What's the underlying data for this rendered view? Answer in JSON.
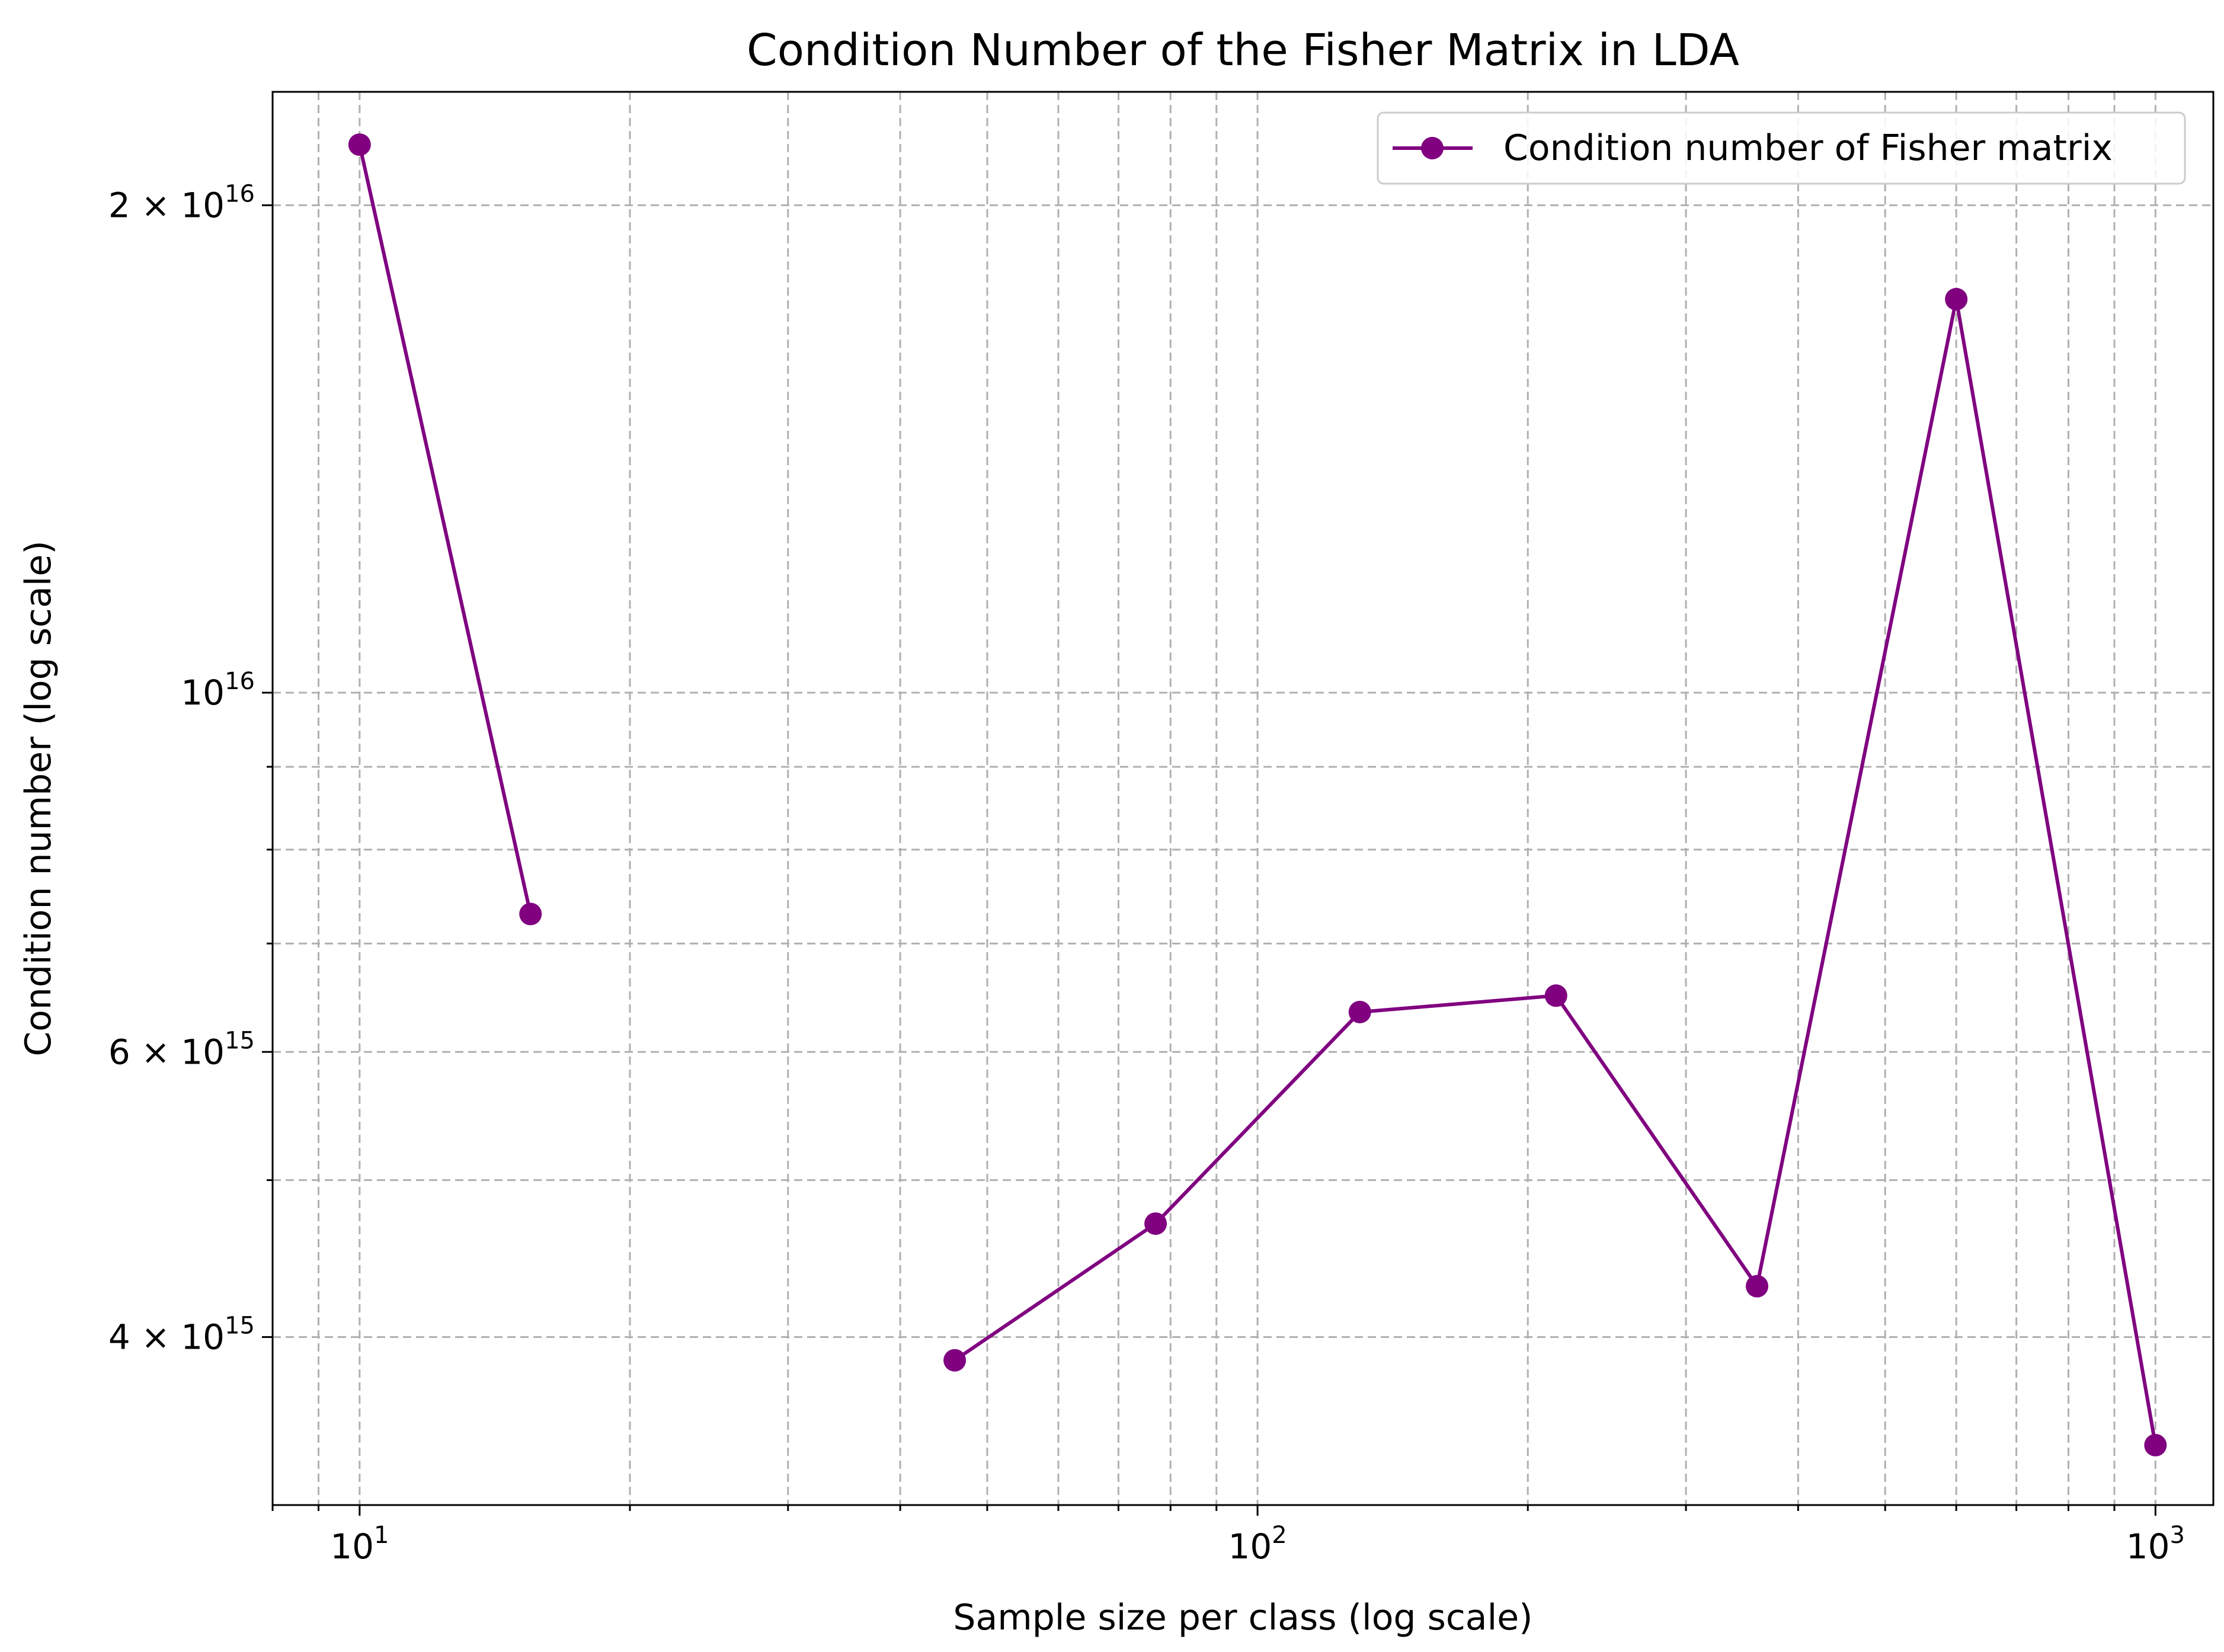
{
  "chart_data": {
    "type": "line",
    "title": "Condition Number of the Fisher Matrix in LDA",
    "xlabel": "Sample size per class (log scale)",
    "ylabel": "Condition number (log scale)",
    "xscale": "log",
    "yscale": "log",
    "xlim": [
      8,
      1160
    ],
    "ylim": [
      3150000000000000.0,
      2.35e+16
    ],
    "grid": true,
    "grid_style": "dashed",
    "legend_position": "top-right",
    "colors": {
      "series": "#800080",
      "grid": "#b0b0b0"
    },
    "x_ticks": [
      {
        "value": 10,
        "base": "10",
        "exp": "1"
      },
      {
        "value": 100,
        "base": "10",
        "exp": "2"
      },
      {
        "value": 1000,
        "base": "10",
        "exp": "3"
      }
    ],
    "y_ticks": [
      {
        "value": 4000000000000000.0,
        "mant": "4 × 10",
        "exp": "15"
      },
      {
        "value": 6000000000000000.0,
        "mant": "6 × 10",
        "exp": "15"
      },
      {
        "value": 1e+16,
        "mant": "10",
        "exp": "16"
      },
      {
        "value": 2e+16,
        "mant": "2 × 10",
        "exp": "16"
      }
    ],
    "series": [
      {
        "name": "Condition number of Fisher matrix",
        "x": [
          10,
          15.5,
          46,
          77,
          130,
          215,
          360,
          600,
          1000
        ],
        "y": [
          2.18e+16,
          7300000000000000.0,
          3870000000000000.0,
          4700000000000000.0,
          6350000000000000.0,
          6500000000000000.0,
          4300000000000000.0,
          1.75e+16,
          3430000000000000.0
        ]
      }
    ]
  }
}
